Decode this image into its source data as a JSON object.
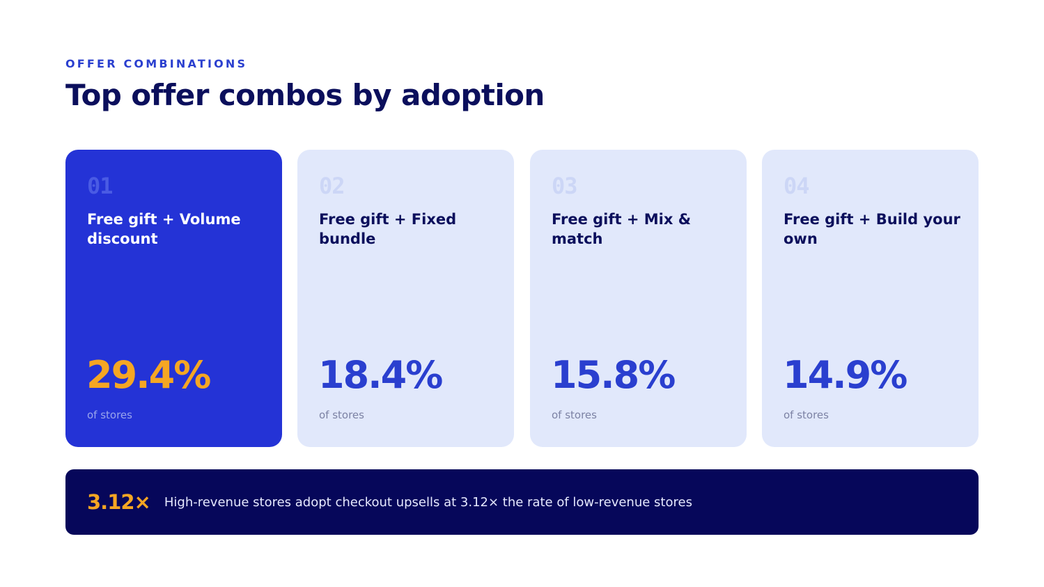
{
  "header": {
    "eyebrow": "OFFER COMBINATIONS",
    "title": "Top offer combos by adoption"
  },
  "cards": [
    {
      "rank": "01",
      "label": "Free gift + Volume discount",
      "value": "29.4%",
      "caption": "of stores"
    },
    {
      "rank": "02",
      "label": "Free gift + Fixed bundle",
      "value": "18.4%",
      "caption": "of stores"
    },
    {
      "rank": "03",
      "label": "Free gift + Mix & match",
      "value": "15.8%",
      "caption": "of stores"
    },
    {
      "rank": "04",
      "label": "Free gift + Build your own",
      "value": "14.9%",
      "caption": "of stores"
    }
  ],
  "banner": {
    "stat": "3.12×",
    "text": "High-revenue stores adopt checkout upsells at 3.12× the rate of low-revenue stores"
  },
  "colors": {
    "accent_blue": "#2433d6",
    "navy": "#06075a",
    "highlight_orange": "#f5a623",
    "card_bg": "#e1e8fb"
  }
}
